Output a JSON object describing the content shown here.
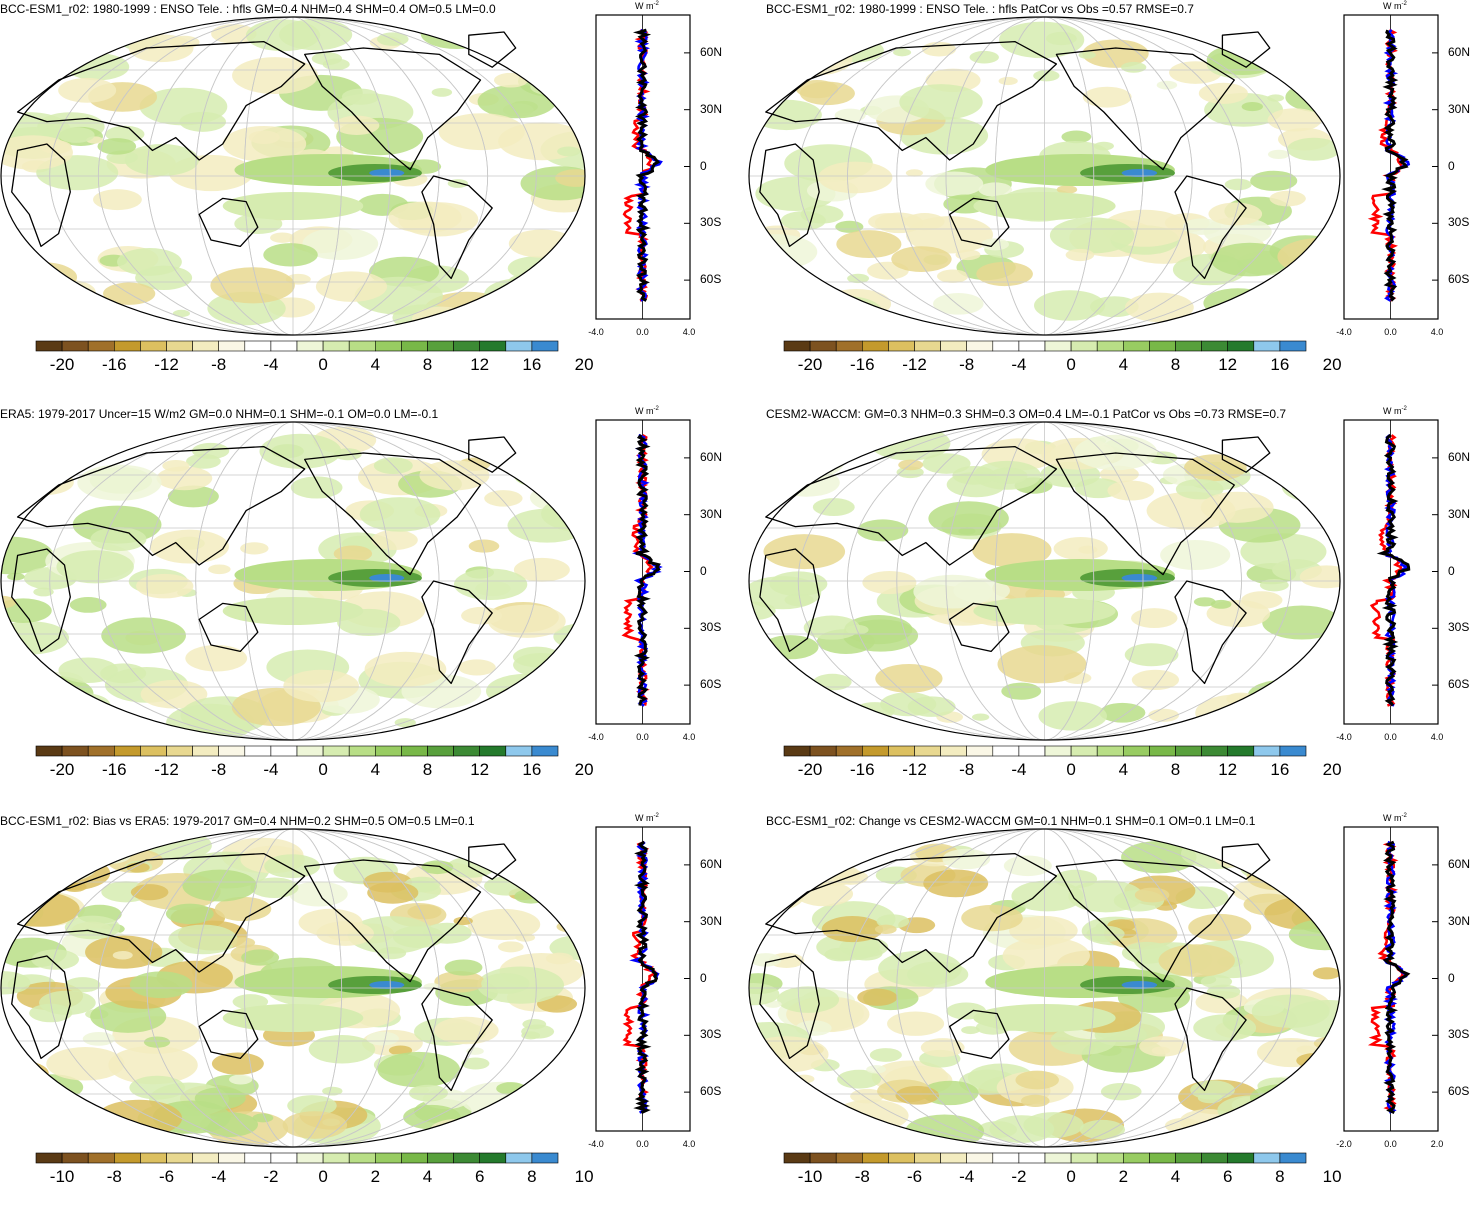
{
  "chart_data": [
    {
      "type": "heatmap",
      "title": "BCC-ESM1_r02: 1980-1999 : ENSO Tele. : hfls GM=0.4 NHM=0.4 SHM=0.4 OM=0.5 LM=0.0",
      "colorbar_ticks": [
        "-20",
        "-16",
        "-12",
        "-8",
        "-4",
        "0",
        "4",
        "8",
        "12",
        "16",
        "20"
      ],
      "zonal": {
        "unit": "W m",
        "unit_exp": "-2",
        "xticks": [
          "-4.0",
          "0.0",
          "4.0"
        ],
        "xlim": [
          -4,
          4
        ],
        "lat_ticks": [
          "60N",
          "30N",
          "0",
          "30S",
          "60S"
        ],
        "lat_values": [
          60,
          30,
          0,
          -30,
          -60
        ],
        "ylim": [
          -80,
          80
        ]
      }
    },
    {
      "type": "heatmap",
      "title": "BCC-ESM1_r02: 1980-1999 : ENSO Tele. : hfls PatCor vs Obs =0.57 RMSE=0.7",
      "colorbar_ticks": [
        "-20",
        "-16",
        "-12",
        "-8",
        "-4",
        "0",
        "4",
        "8",
        "12",
        "16",
        "20"
      ],
      "zonal": {
        "unit": "W m",
        "unit_exp": "-2",
        "xticks": [
          "-4.0",
          "0.0",
          "4.0"
        ],
        "xlim": [
          -4,
          4
        ],
        "lat_ticks": [
          "60N",
          "30N",
          "0",
          "30S",
          "60S"
        ],
        "lat_values": [
          60,
          30,
          0,
          -30,
          -60
        ],
        "ylim": [
          -80,
          80
        ]
      }
    },
    {
      "type": "heatmap",
      "title": "ERA5: 1979-2017 Uncer=15 W/m2 GM=0.0 NHM=0.1 SHM=-0.1 OM=0.0 LM=-0.1",
      "colorbar_ticks": [
        "-20",
        "-16",
        "-12",
        "-8",
        "-4",
        "0",
        "4",
        "8",
        "12",
        "16",
        "20"
      ],
      "zonal": {
        "unit": "W m",
        "unit_exp": "-2",
        "xticks": [
          "-4.0",
          "0.0",
          "4.0"
        ],
        "xlim": [
          -4,
          4
        ],
        "lat_ticks": [
          "60N",
          "30N",
          "0",
          "30S",
          "60S"
        ],
        "lat_values": [
          60,
          30,
          0,
          -30,
          -60
        ],
        "ylim": [
          -80,
          80
        ]
      }
    },
    {
      "type": "heatmap",
      "title": "CESM2-WACCM: GM=0.3 NHM=0.3 SHM=0.3 OM=0.4 LM=-0.1 PatCor vs Obs =0.73 RMSE=0.7",
      "colorbar_ticks": [
        "-20",
        "-16",
        "-12",
        "-8",
        "-4",
        "0",
        "4",
        "8",
        "12",
        "16",
        "20"
      ],
      "zonal": {
        "unit": "W m",
        "unit_exp": "-2",
        "xticks": [
          "-4.0",
          "0.0",
          "4.0"
        ],
        "xlim": [
          -4,
          4
        ],
        "lat_ticks": [
          "60N",
          "30N",
          "0",
          "30S",
          "60S"
        ],
        "lat_values": [
          60,
          30,
          0,
          -30,
          -60
        ],
        "ylim": [
          -80,
          80
        ]
      }
    },
    {
      "type": "heatmap",
      "title": "BCC-ESM1_r02: Bias vs ERA5: 1979-2017 GM=0.4 NHM=0.2 SHM=0.5 OM=0.5 LM=0.1",
      "colorbar_ticks": [
        "-10",
        "-8",
        "-6",
        "-4",
        "-2",
        "0",
        "2",
        "4",
        "6",
        "8",
        "10"
      ],
      "zonal": {
        "unit": "W m",
        "unit_exp": "-2",
        "xticks": [
          "-4.0",
          "0.0",
          "4.0"
        ],
        "xlim": [
          -4,
          4
        ],
        "lat_ticks": [
          "60N",
          "30N",
          "0",
          "30S",
          "60S"
        ],
        "lat_values": [
          60,
          30,
          0,
          -30,
          -60
        ],
        "ylim": [
          -80,
          80
        ]
      }
    },
    {
      "type": "heatmap",
      "title": "BCC-ESM1_r02: Change vs CESM2-WACCM GM=0.1 NHM=0.1 SHM=0.1 OM=0.1 LM=0.1",
      "colorbar_ticks": [
        "-10",
        "-8",
        "-6",
        "-4",
        "-2",
        "0",
        "2",
        "4",
        "6",
        "8",
        "10"
      ],
      "zonal": {
        "unit": "W m",
        "unit_exp": "-2",
        "xticks": [
          "-2.0",
          "0.0",
          "2.0"
        ],
        "xlim": [
          -2,
          2
        ],
        "lat_ticks": [
          "60N",
          "30N",
          "0",
          "30S",
          "60S"
        ],
        "lat_values": [
          60,
          30,
          0,
          -30,
          -60
        ],
        "ylim": [
          -80,
          80
        ]
      }
    }
  ],
  "colors": {
    "palette": [
      "#5a3a14",
      "#7d5220",
      "#a0702a",
      "#c49a2c",
      "#dcc060",
      "#e8d890",
      "#f3ecc0",
      "#faf7e6",
      "#ffffff",
      "#ffffff",
      "#eef6d8",
      "#d6ecb0",
      "#b8de86",
      "#98cc62",
      "#78b848",
      "#58a03c",
      "#3c8a34",
      "#247a2c",
      "#8ec8ec",
      "#3a8ad0"
    ],
    "zonal_lines": [
      "#ff0000",
      "#0000ff",
      "#000000"
    ]
  }
}
